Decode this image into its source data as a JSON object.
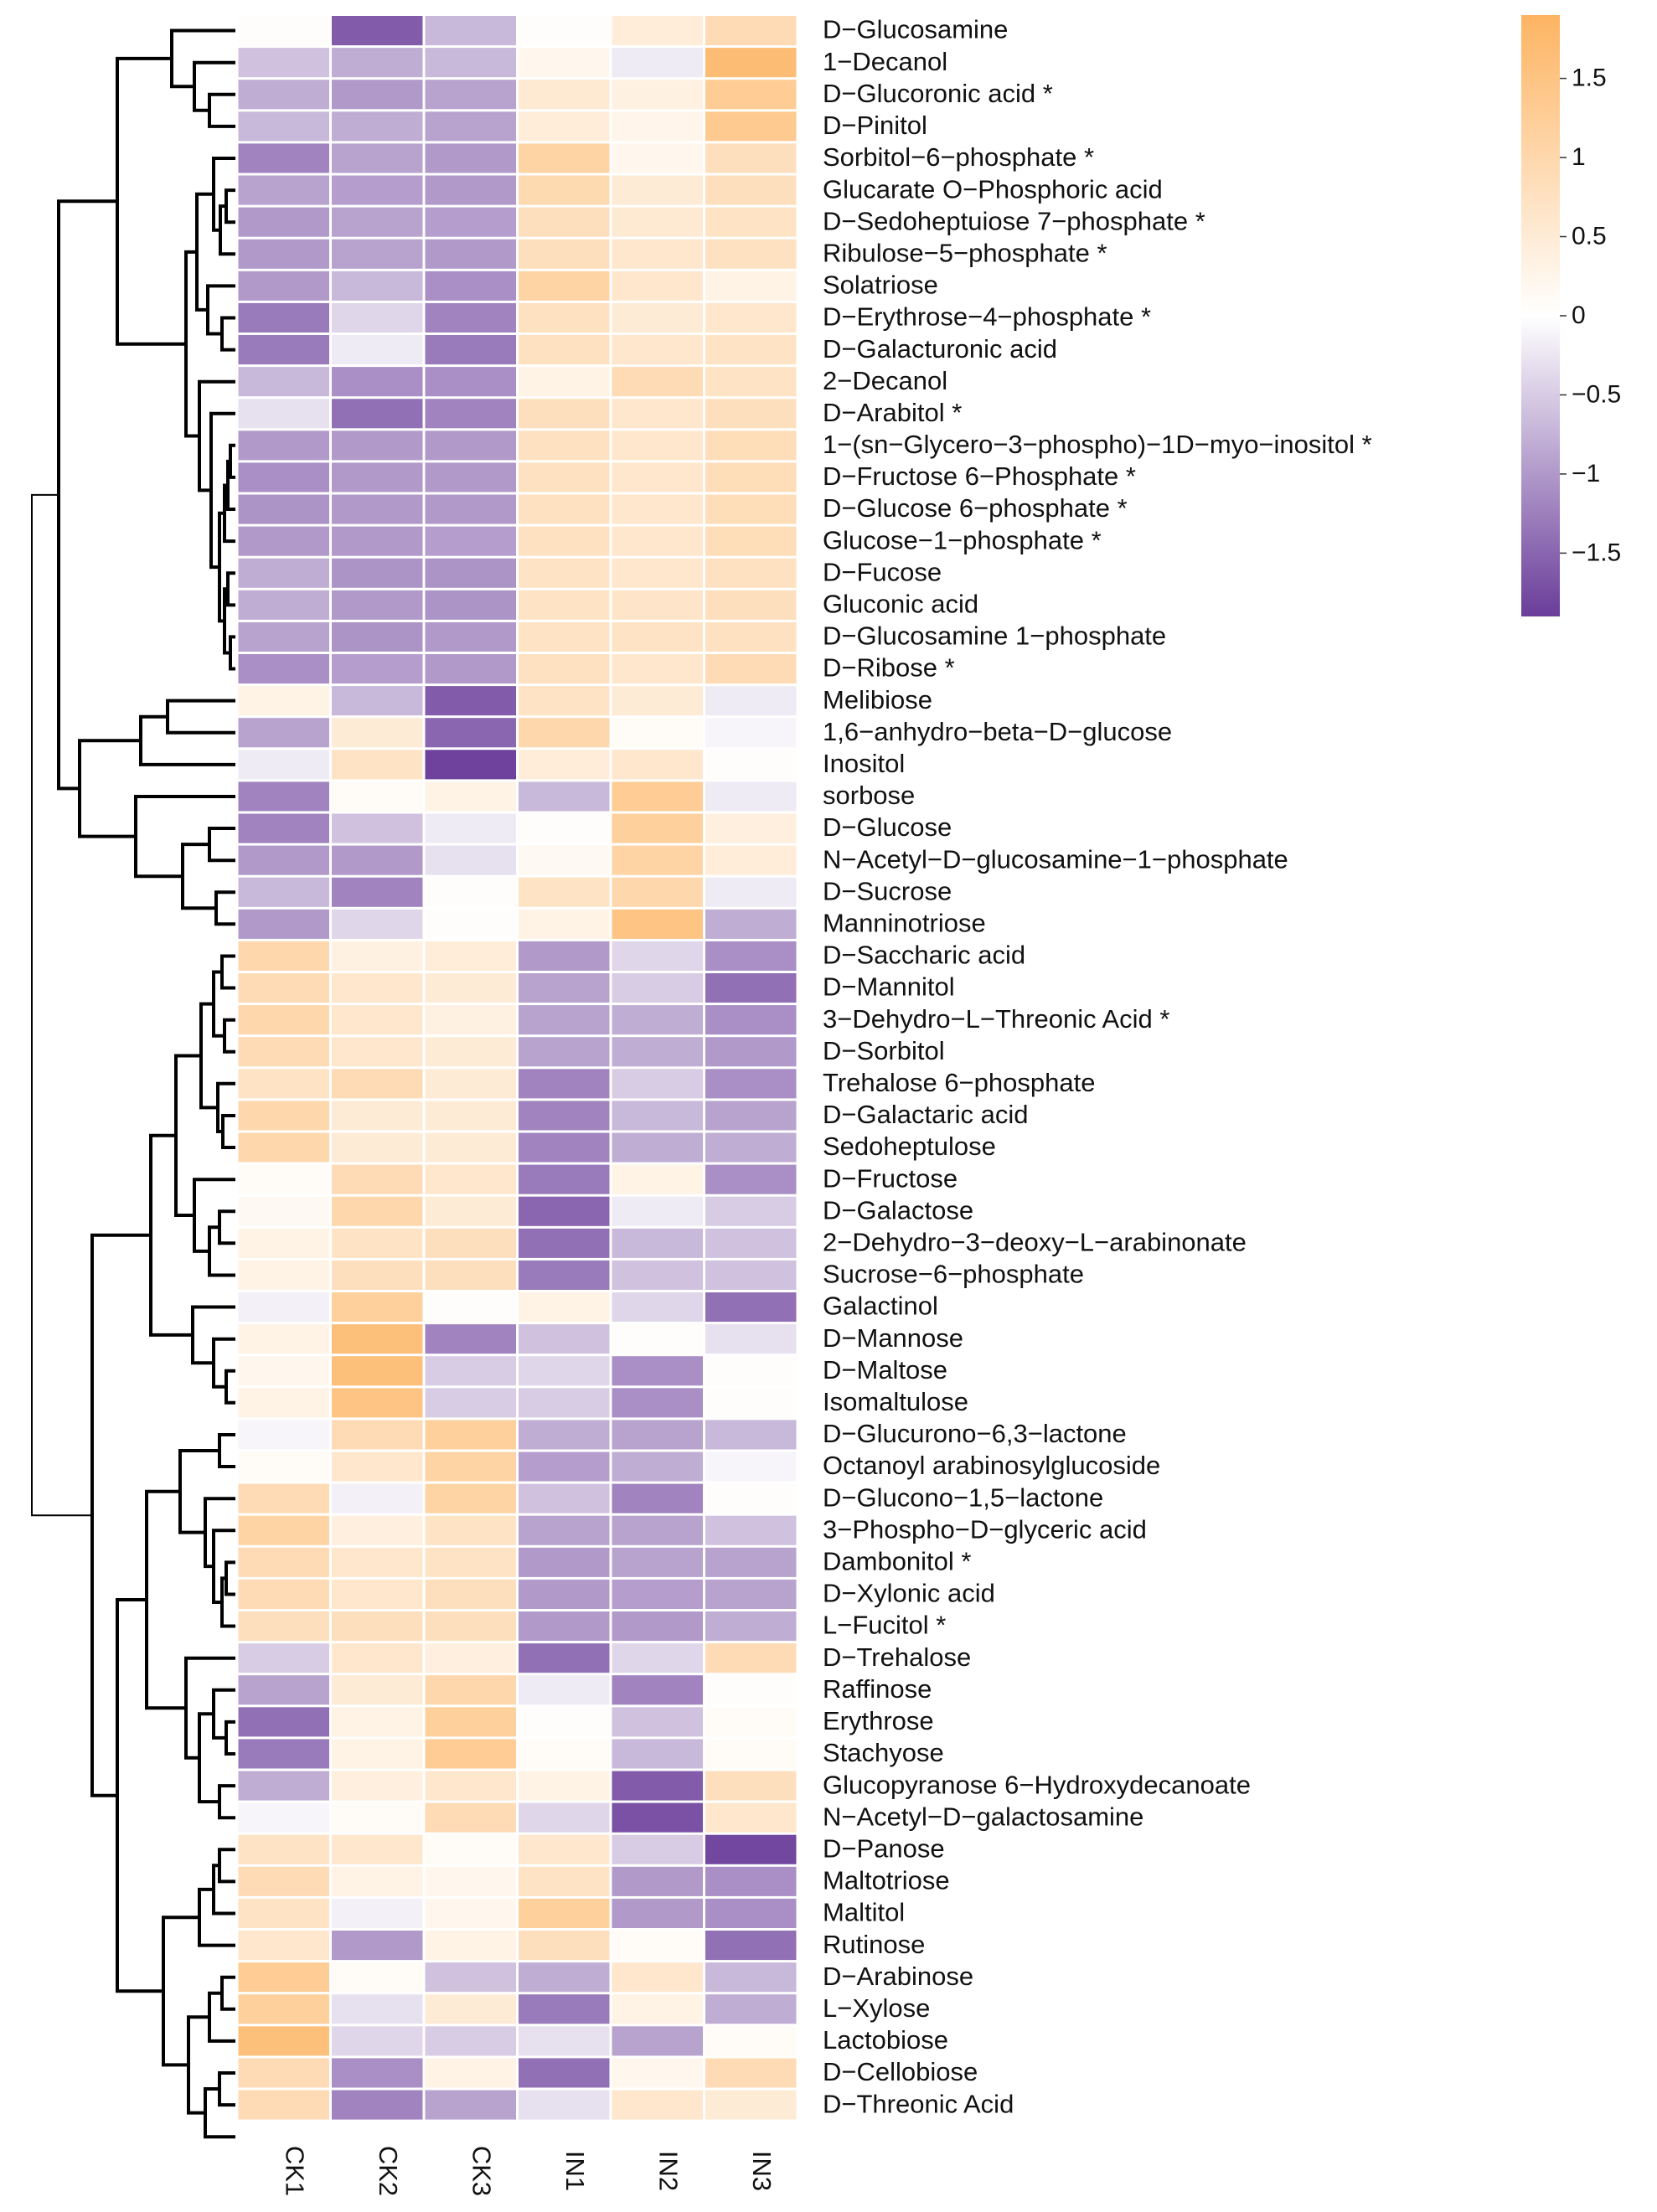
{
  "chart_data": {
    "type": "heatmap",
    "title": "",
    "columns": [
      "CK1",
      "CK2",
      "CK3",
      "IN1",
      "IN2",
      "IN3"
    ],
    "rows": [
      {
        "name": "D−Glucosamine",
        "values": [
          0.05,
          -1.6,
          -0.7,
          0.05,
          0.45,
          0.9
        ]
      },
      {
        "name": "1−Decanol",
        "values": [
          -0.6,
          -0.8,
          -0.7,
          0.2,
          -0.2,
          1.7
        ]
      },
      {
        "name": "D−Glucoronic acid *",
        "values": [
          -0.8,
          -1.0,
          -0.9,
          0.55,
          0.35,
          1.3
        ]
      },
      {
        "name": "D−Pinitol",
        "values": [
          -0.7,
          -0.8,
          -0.9,
          0.45,
          0.25,
          1.35
        ]
      },
      {
        "name": "Sorbitol−6−phosphate *",
        "values": [
          -1.2,
          -0.9,
          -1.0,
          1.1,
          0.2,
          0.8
        ]
      },
      {
        "name": "Glucarate O−Phosphoric acid",
        "values": [
          -0.9,
          -0.95,
          -1.0,
          0.95,
          0.5,
          0.8
        ]
      },
      {
        "name": "D−Sedoheptuiose 7−phosphate *",
        "values": [
          -1.0,
          -0.9,
          -0.95,
          0.8,
          0.55,
          0.7
        ]
      },
      {
        "name": "Ribulose−5−phosphate *",
        "values": [
          -1.0,
          -0.9,
          -1.0,
          0.8,
          0.6,
          0.75
        ]
      },
      {
        "name": "Solatriose",
        "values": [
          -1.0,
          -0.7,
          -1.1,
          1.1,
          0.6,
          0.3
        ]
      },
      {
        "name": "D−Erythrose−4−phosphate *",
        "values": [
          -1.3,
          -0.4,
          -1.2,
          0.75,
          0.5,
          0.6
        ]
      },
      {
        "name": "D−Galacturonic acid",
        "values": [
          -1.3,
          -0.2,
          -1.3,
          0.75,
          0.6,
          0.7
        ]
      },
      {
        "name": "2−Decanol",
        "values": [
          -0.7,
          -1.1,
          -1.1,
          0.3,
          0.9,
          0.7
        ]
      },
      {
        "name": "D−Arabitol *",
        "values": [
          -0.3,
          -1.4,
          -1.2,
          0.8,
          0.6,
          0.8
        ]
      },
      {
        "name": "1−(sn−Glycero−3−phospho)−1D−myo−inositol *",
        "values": [
          -1.0,
          -1.0,
          -1.0,
          0.75,
          0.6,
          0.85
        ]
      },
      {
        "name": "D−Fructose 6−Phosphate *",
        "values": [
          -1.1,
          -1.0,
          -1.0,
          0.75,
          0.6,
          0.85
        ]
      },
      {
        "name": "D−Glucose 6−phosphate *",
        "values": [
          -1.05,
          -1.0,
          -1.0,
          0.75,
          0.6,
          0.85
        ]
      },
      {
        "name": "Glucose−1−phosphate *",
        "values": [
          -1.0,
          -1.0,
          -0.95,
          0.75,
          0.6,
          0.85
        ]
      },
      {
        "name": "D−Fucose",
        "values": [
          -0.8,
          -1.05,
          -1.05,
          0.7,
          0.6,
          0.75
        ]
      },
      {
        "name": "Gluconic acid",
        "values": [
          -0.8,
          -1.0,
          -1.05,
          0.7,
          0.65,
          0.8
        ]
      },
      {
        "name": "D−Glucosamine 1−phosphate",
        "values": [
          -0.9,
          -1.05,
          -1.0,
          0.7,
          0.7,
          0.75
        ]
      },
      {
        "name": "D−Ribose *",
        "values": [
          -1.1,
          -0.95,
          -1.0,
          0.75,
          0.6,
          0.9
        ]
      },
      {
        "name": "Melibiose",
        "values": [
          0.3,
          -0.7,
          -1.6,
          0.7,
          0.5,
          -0.2
        ]
      },
      {
        "name": "1,6−anhydro−beta−D−glucose",
        "values": [
          -0.9,
          0.5,
          -1.5,
          1.0,
          0.1,
          -0.1
        ]
      },
      {
        "name": "Inositol",
        "values": [
          -0.2,
          0.7,
          -1.85,
          0.45,
          0.6,
          0.05
        ]
      },
      {
        "name": "sorbose",
        "values": [
          -1.2,
          0.1,
          0.3,
          -0.7,
          1.3,
          -0.2
        ]
      },
      {
        "name": "D−Glucose",
        "values": [
          -1.2,
          -0.6,
          -0.2,
          0.05,
          1.2,
          0.4
        ]
      },
      {
        "name": "N−Acetyl−D−glucosamine−1−phosphate",
        "values": [
          -1.0,
          -1.0,
          -0.3,
          0.15,
          1.1,
          0.45
        ]
      },
      {
        "name": "D−Sucrose",
        "values": [
          -0.7,
          -1.2,
          0.05,
          0.7,
          1.0,
          -0.2
        ]
      },
      {
        "name": "Manninotriose",
        "values": [
          -1.0,
          -0.4,
          0.05,
          0.3,
          1.5,
          -0.8
        ]
      },
      {
        "name": "D−Saccharic acid",
        "values": [
          1.0,
          0.35,
          0.45,
          -1.0,
          -0.4,
          -1.1
        ]
      },
      {
        "name": "D−Mannitol",
        "values": [
          0.9,
          0.6,
          0.5,
          -0.9,
          -0.5,
          -1.4
        ]
      },
      {
        "name": "3−Dehydro−L−Threonic Acid *",
        "values": [
          1.0,
          0.6,
          0.35,
          -0.9,
          -0.8,
          -1.1
        ]
      },
      {
        "name": "D−Sorbitol",
        "values": [
          0.9,
          0.6,
          0.5,
          -0.9,
          -0.8,
          -1.0
        ]
      },
      {
        "name": "Trehalose 6−phosphate",
        "values": [
          0.7,
          0.9,
          0.5,
          -1.2,
          -0.5,
          -1.1
        ]
      },
      {
        "name": "D−Galactaric acid",
        "values": [
          1.0,
          0.5,
          0.5,
          -1.2,
          -0.7,
          -0.9
        ]
      },
      {
        "name": "Sedoheptulose",
        "values": [
          1.0,
          0.5,
          0.5,
          -1.2,
          -0.8,
          -0.8
        ]
      },
      {
        "name": "D−Fructose",
        "values": [
          0.1,
          0.9,
          0.6,
          -1.3,
          0.3,
          -1.1
        ]
      },
      {
        "name": "D−Galactose",
        "values": [
          0.15,
          1.0,
          0.5,
          -1.5,
          -0.2,
          -0.5
        ]
      },
      {
        "name": "2−Dehydro−3−deoxy−L−arabinonate",
        "values": [
          0.3,
          0.7,
          0.8,
          -1.4,
          -0.7,
          -0.6
        ]
      },
      {
        "name": "Sucrose−6−phosphate",
        "values": [
          0.3,
          0.8,
          0.8,
          -1.3,
          -0.6,
          -0.6
        ]
      },
      {
        "name": "Galactinol",
        "values": [
          -0.15,
          1.2,
          0.05,
          0.3,
          -0.4,
          -1.4
        ]
      },
      {
        "name": "D−Mannose",
        "values": [
          0.3,
          1.6,
          -1.2,
          -0.6,
          0.05,
          -0.3
        ]
      },
      {
        "name": "D−Maltose",
        "values": [
          0.2,
          1.6,
          -0.5,
          -0.4,
          -1.1,
          0.05
        ]
      },
      {
        "name": "Isomaltulose",
        "values": [
          0.3,
          1.5,
          -0.5,
          -0.5,
          -1.1,
          0.05
        ]
      },
      {
        "name": "D−Glucurono−6,3−lactone",
        "values": [
          -0.1,
          0.9,
          1.2,
          -0.8,
          -0.9,
          -0.7
        ]
      },
      {
        "name": "Octanoyl arabinosylglucoside",
        "values": [
          0.1,
          0.6,
          1.1,
          -0.95,
          -0.8,
          -0.1
        ]
      },
      {
        "name": "D−Glucono−1,5−lactone",
        "values": [
          0.9,
          -0.15,
          1.1,
          -0.6,
          -1.2,
          0.05
        ]
      },
      {
        "name": "3−Phospho−D−glyceric acid",
        "values": [
          1.1,
          0.4,
          0.7,
          -0.9,
          -0.9,
          -0.6
        ]
      },
      {
        "name": "Dambonitol *",
        "values": [
          0.9,
          0.6,
          0.7,
          -1.0,
          -0.9,
          -0.9
        ]
      },
      {
        "name": "D−Xylonic acid",
        "values": [
          0.9,
          0.6,
          0.8,
          -1.0,
          -0.95,
          -0.9
        ]
      },
      {
        "name": "L−Fucitol *",
        "values": [
          0.8,
          0.8,
          0.8,
          -1.0,
          -1.0,
          -0.8
        ]
      },
      {
        "name": "D−Trehalose",
        "values": [
          -0.5,
          0.6,
          0.4,
          -1.4,
          -0.4,
          0.9
        ]
      },
      {
        "name": "Raffinose",
        "values": [
          -0.9,
          0.5,
          1.0,
          -0.2,
          -1.2,
          0.05
        ]
      },
      {
        "name": "Erythrose",
        "values": [
          -1.4,
          0.3,
          1.2,
          0.05,
          -0.6,
          0.1
        ]
      },
      {
        "name": "Stachyose",
        "values": [
          -1.3,
          0.3,
          1.3,
          0.1,
          -0.7,
          0.1
        ]
      },
      {
        "name": "Glucopyranose 6−Hydroxydecanoate",
        "values": [
          -0.8,
          0.4,
          0.6,
          0.3,
          -1.6,
          0.8
        ]
      },
      {
        "name": "N−Acetyl−D−galactosamine",
        "values": [
          -0.1,
          0.1,
          0.9,
          -0.4,
          -1.7,
          0.6
        ]
      },
      {
        "name": "D−Panose",
        "values": [
          0.7,
          0.6,
          0.1,
          0.6,
          -0.5,
          -1.8
        ]
      },
      {
        "name": "Maltotriose",
        "values": [
          0.9,
          0.3,
          0.2,
          0.7,
          -1.0,
          -1.1
        ]
      },
      {
        "name": "Maltitol",
        "values": [
          0.7,
          -0.15,
          0.2,
          1.2,
          -1.0,
          -1.1
        ]
      },
      {
        "name": "Rutinose",
        "values": [
          0.6,
          -1.0,
          0.3,
          0.8,
          0.1,
          -1.4
        ]
      },
      {
        "name": "D−Arabinose",
        "values": [
          1.3,
          0.1,
          -0.6,
          -0.8,
          0.6,
          -0.7
        ]
      },
      {
        "name": "L−Xylose",
        "values": [
          1.2,
          -0.3,
          0.5,
          -1.3,
          0.3,
          -0.8
        ]
      },
      {
        "name": "Lactobiose",
        "values": [
          1.6,
          -0.4,
          -0.5,
          -0.3,
          -0.9,
          0.1
        ]
      },
      {
        "name": "D−Cellobiose",
        "values": [
          0.9,
          -1.1,
          0.3,
          -1.4,
          0.2,
          0.9
        ]
      },
      {
        "name": "D−Threonic Acid",
        "values": [
          0.9,
          -1.2,
          -0.9,
          -0.3,
          0.6,
          0.5
        ]
      }
    ],
    "color_scale": {
      "min": -1.9,
      "max": 1.9,
      "low_color": "#6a3d9a",
      "mid_color": "#ffffff",
      "high_color": "#fdb462"
    },
    "legend": {
      "position": "top-right",
      "ticks": [
        {
          "value": 1.5,
          "label": "1.5"
        },
        {
          "value": 1,
          "label": "1"
        },
        {
          "value": 0.5,
          "label": "0.5"
        },
        {
          "value": 0,
          "label": "0"
        },
        {
          "value": -0.5,
          "label": "−0.5"
        },
        {
          "value": -1,
          "label": "−1"
        },
        {
          "value": -1.5,
          "label": "−1.5"
        }
      ]
    },
    "row_dendrogram": "left",
    "grid": false
  }
}
